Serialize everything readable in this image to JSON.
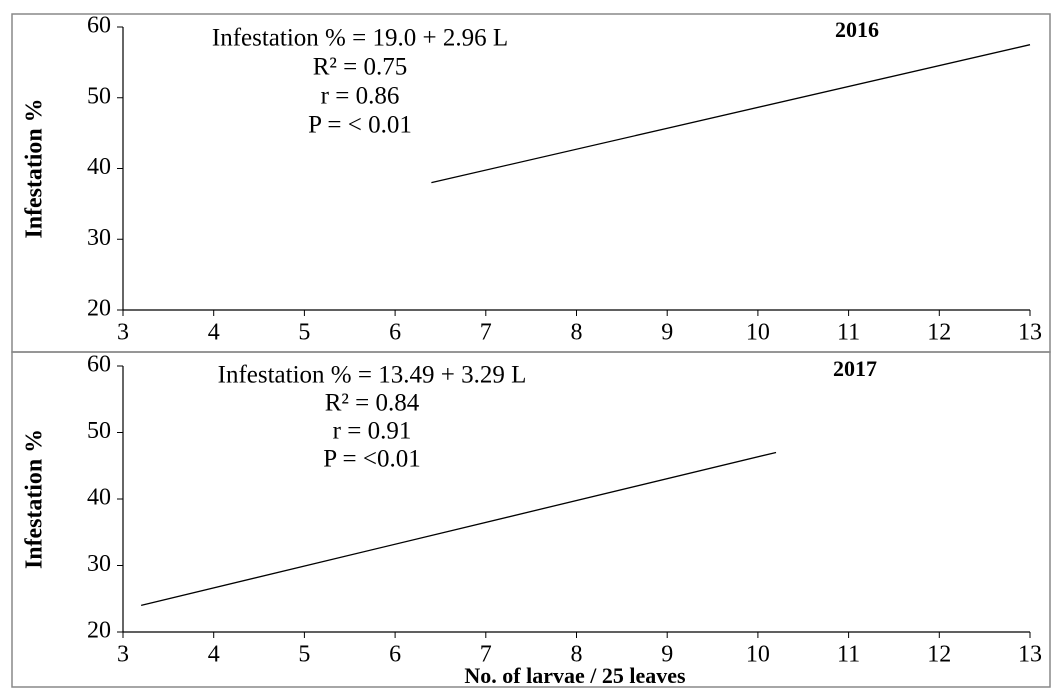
{
  "chart_data": [
    {
      "type": "line",
      "title": "2016",
      "y_label": "Infestation %",
      "annotations": [
        "Infestation % = 19.0 + 2.96 L",
        "R² = 0.75",
        "r = 0.86",
        "P = < 0.01"
      ],
      "x": [
        6.4,
        13
      ],
      "values": [
        38,
        57.5
      ],
      "color": "#000000",
      "xlim": [
        3,
        13
      ],
      "xticks": [
        3,
        4,
        5,
        6,
        7,
        8,
        9,
        10,
        11,
        12,
        13
      ],
      "ylim": [
        20,
        60
      ],
      "yticks": [
        20,
        30,
        40,
        50,
        60
      ]
    },
    {
      "type": "line",
      "title": "2017",
      "y_label": "Infestation %",
      "x_label": "No. of larvae / 25 leaves",
      "annotations": [
        "Infestation % = 13.49 + 3.29 L",
        "R² = 0.84",
        "r = 0.91",
        "P = <0.01"
      ],
      "x": [
        3.2,
        10.2
      ],
      "values": [
        24,
        47
      ],
      "color": "#000000",
      "xlim": [
        3,
        13
      ],
      "xticks": [
        3,
        4,
        5,
        6,
        7,
        8,
        9,
        10,
        11,
        12,
        13
      ],
      "ylim": [
        20,
        60
      ],
      "yticks": [
        20,
        30,
        40,
        50,
        60
      ]
    }
  ]
}
